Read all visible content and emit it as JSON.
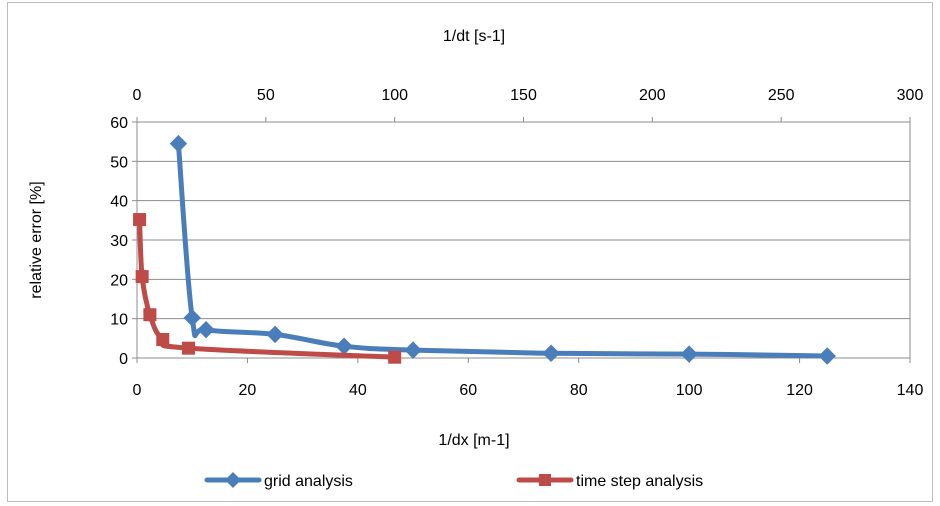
{
  "chart_data": {
    "type": "scatter",
    "title": "",
    "xlabel": "1/dx  [m-1]",
    "x2label": "1/dt [s-1]",
    "ylabel": "relative error [%]",
    "xlim": [
      0,
      140
    ],
    "x2lim": [
      0,
      300
    ],
    "ylim": [
      0,
      60
    ],
    "xticks": [
      "0",
      "20",
      "40",
      "60",
      "80",
      "100",
      "120",
      "140"
    ],
    "x2ticks": [
      "0",
      "50",
      "100",
      "150",
      "200",
      "250",
      "300"
    ],
    "yticks": [
      "0",
      "10",
      "20",
      "30",
      "40",
      "50",
      "60"
    ],
    "grid": true,
    "legend_position": "bottom",
    "series": [
      {
        "name": "grid analysis",
        "axis": "bottom",
        "color": "#4a7ebb",
        "marker": "diamond",
        "x": [
          7.5,
          10,
          12.5,
          25,
          37.5,
          50,
          75,
          100,
          125
        ],
        "y": [
          54.5,
          10.2,
          7.2,
          6.0,
          3.0,
          2.0,
          1.2,
          1.0,
          0.5
        ]
      },
      {
        "name": "time step analysis",
        "axis": "top",
        "color": "#be4b48",
        "marker": "square",
        "x": [
          1,
          2,
          5,
          10,
          20,
          100
        ],
        "y": [
          35.2,
          20.7,
          11.0,
          4.7,
          2.5,
          0.2
        ]
      }
    ]
  }
}
